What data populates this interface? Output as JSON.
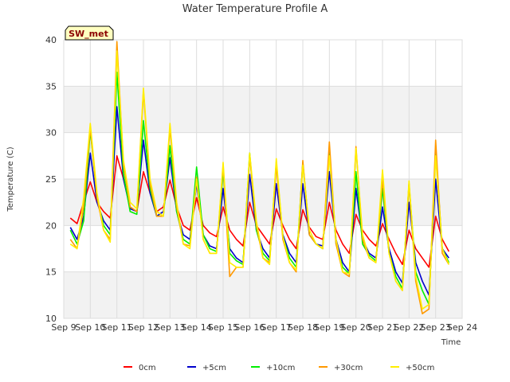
{
  "chart_data": {
    "type": "line",
    "title": "Water Temperature Profile A",
    "xlabel": "Time",
    "ylabel": "Temperature (C)",
    "station_label": "SW_met",
    "x_ticks": [
      "Sep 9",
      "Sep 10",
      "Sep 11",
      "Sep 12",
      "Sep 13",
      "Sep 14",
      "Sep 15",
      "Sep 16",
      "Sep 17",
      "Sep 18",
      "Sep 19",
      "Sep 20",
      "Sep 21",
      "Sep 22",
      "Sep 23",
      "Sep 24"
    ],
    "y_ticks": [
      10,
      15,
      20,
      25,
      30,
      35,
      40
    ],
    "ylim": [
      10,
      40
    ],
    "grid": true,
    "legend_position": "bottom",
    "series": [
      {
        "name": "0cm",
        "color": "#ff0000",
        "x": [
          "Sep 9 06:00",
          "Sep 9 12:00",
          "Sep 9 18:00",
          "Sep 10 00:00",
          "Sep 10 06:00",
          "Sep 10 12:00",
          "Sep 10 18:00",
          "Sep 11 00:00",
          "Sep 11 06:00",
          "Sep 11 12:00",
          "Sep 11 18:00",
          "Sep 12 00:00",
          "Sep 12 06:00",
          "Sep 12 12:00",
          "Sep 12 18:00",
          "Sep 13 00:00",
          "Sep 13 06:00",
          "Sep 13 12:00",
          "Sep 13 18:00",
          "Sep 14 00:00",
          "Sep 14 06:00",
          "Sep 14 12:00",
          "Sep 14 18:00",
          "Sep 15 00:00",
          "Sep 15 06:00",
          "Sep 15 12:00",
          "Sep 15 18:00",
          "Sep 16 00:00",
          "Sep 16 06:00",
          "Sep 16 12:00",
          "Sep 16 18:00",
          "Sep 17 00:00",
          "Sep 17 06:00",
          "Sep 17 12:00",
          "Sep 17 18:00",
          "Sep 18 00:00",
          "Sep 18 06:00",
          "Sep 18 12:00",
          "Sep 18 18:00",
          "Sep 19 00:00",
          "Sep 19 06:00",
          "Sep 19 12:00",
          "Sep 19 18:00",
          "Sep 20 00:00",
          "Sep 20 06:00",
          "Sep 20 12:00",
          "Sep 20 18:00",
          "Sep 21 00:00",
          "Sep 21 06:00",
          "Sep 21 12:00",
          "Sep 21 18:00",
          "Sep 22 00:00",
          "Sep 22 06:00",
          "Sep 22 12:00",
          "Sep 22 18:00",
          "Sep 23 00:00",
          "Sep 23 06:00",
          "Sep 23 12:00"
        ],
        "y": [
          20.8,
          20.2,
          22.5,
          24.7,
          22.5,
          21.5,
          20.8,
          27.5,
          25.0,
          22.0,
          21.5,
          25.8,
          23.5,
          21.5,
          22.0,
          24.9,
          22.0,
          20.0,
          19.5,
          23.0,
          20.0,
          19.2,
          18.8,
          22.0,
          19.5,
          18.5,
          17.8,
          22.5,
          20.0,
          19.0,
          18.0,
          21.8,
          20.0,
          18.5,
          17.5,
          21.7,
          19.8,
          18.8,
          18.5,
          22.5,
          19.5,
          18.0,
          17.0,
          21.2,
          19.5,
          18.5,
          17.8,
          20.2,
          18.5,
          17.0,
          15.8,
          19.5,
          17.5,
          16.5,
          15.5,
          21.0,
          18.5,
          17.2
        ]
      },
      {
        "name": "+5cm",
        "color": "#0000cc",
        "x": [
          "Sep 9 06:00",
          "Sep 9 12:00",
          "Sep 9 18:00",
          "Sep 10 00:00",
          "Sep 10 06:00",
          "Sep 10 12:00",
          "Sep 10 18:00",
          "Sep 11 00:00",
          "Sep 11 06:00",
          "Sep 11 12:00",
          "Sep 11 18:00",
          "Sep 12 00:00",
          "Sep 12 06:00",
          "Sep 12 12:00",
          "Sep 12 18:00",
          "Sep 13 00:00",
          "Sep 13 06:00",
          "Sep 13 12:00",
          "Sep 13 18:00",
          "Sep 14 00:00",
          "Sep 14 06:00",
          "Sep 14 12:00",
          "Sep 14 18:00",
          "Sep 15 00:00",
          "Sep 15 06:00",
          "Sep 15 12:00",
          "Sep 15 18:00",
          "Sep 16 00:00",
          "Sep 16 06:00",
          "Sep 16 12:00",
          "Sep 16 18:00",
          "Sep 17 00:00",
          "Sep 17 06:00",
          "Sep 17 12:00",
          "Sep 17 18:00",
          "Sep 18 00:00",
          "Sep 18 06:00",
          "Sep 18 12:00",
          "Sep 18 18:00",
          "Sep 19 00:00",
          "Sep 19 06:00",
          "Sep 19 12:00",
          "Sep 19 18:00",
          "Sep 20 00:00",
          "Sep 20 06:00",
          "Sep 20 12:00",
          "Sep 20 18:00",
          "Sep 21 00:00",
          "Sep 21 06:00",
          "Sep 21 12:00",
          "Sep 21 18:00",
          "Sep 22 00:00",
          "Sep 22 06:00",
          "Sep 22 12:00",
          "Sep 22 18:00",
          "Sep 23 00:00",
          "Sep 23 06:00",
          "Sep 23 12:00"
        ],
        "y": [
          19.8,
          18.5,
          21.0,
          27.8,
          22.5,
          20.5,
          19.5,
          32.8,
          25.0,
          21.8,
          21.5,
          29.2,
          23.5,
          21.0,
          21.5,
          27.3,
          21.5,
          19.0,
          18.5,
          24.5,
          19.0,
          17.8,
          17.5,
          24.0,
          17.5,
          16.5,
          16.0,
          25.5,
          19.5,
          17.5,
          16.5,
          24.5,
          19.0,
          17.0,
          16.0,
          24.5,
          19.0,
          18.0,
          17.8,
          25.8,
          18.5,
          16.0,
          15.0,
          24.0,
          18.5,
          17.0,
          16.5,
          22.0,
          17.5,
          15.0,
          13.8,
          22.5,
          16.0,
          14.0,
          12.5,
          25.0,
          17.5,
          16.5
        ]
      },
      {
        "name": "+10cm",
        "color": "#00ee00",
        "x": [
          "Sep 9 06:00",
          "Sep 9 12:00",
          "Sep 9 18:00",
          "Sep 10 00:00",
          "Sep 10 06:00",
          "Sep 10 12:00",
          "Sep 10 18:00",
          "Sep 11 00:00",
          "Sep 11 06:00",
          "Sep 11 12:00",
          "Sep 11 18:00",
          "Sep 12 00:00",
          "Sep 12 06:00",
          "Sep 12 12:00",
          "Sep 12 18:00",
          "Sep 13 00:00",
          "Sep 13 06:00",
          "Sep 13 12:00",
          "Sep 13 18:00",
          "Sep 14 00:00",
          "Sep 14 06:00",
          "Sep 14 12:00",
          "Sep 14 18:00",
          "Sep 15 00:00",
          "Sep 15 06:00",
          "Sep 15 12:00",
          "Sep 15 18:00",
          "Sep 16 00:00",
          "Sep 16 06:00",
          "Sep 16 12:00",
          "Sep 16 18:00",
          "Sep 17 00:00",
          "Sep 17 06:00",
          "Sep 17 12:00",
          "Sep 17 18:00",
          "Sep 18 00:00",
          "Sep 18 06:00",
          "Sep 18 12:00",
          "Sep 18 18:00",
          "Sep 19 00:00",
          "Sep 19 06:00",
          "Sep 19 12:00",
          "Sep 19 18:00",
          "Sep 20 00:00",
          "Sep 20 06:00",
          "Sep 20 12:00",
          "Sep 20 18:00",
          "Sep 21 00:00",
          "Sep 21 06:00",
          "Sep 21 12:00",
          "Sep 21 18:00",
          "Sep 22 00:00",
          "Sep 22 06:00",
          "Sep 22 12:00",
          "Sep 22 18:00",
          "Sep 23 00:00",
          "Sep 23 06:00",
          "Sep 23 12:00"
        ],
        "y": [
          19.5,
          18.0,
          20.5,
          30.3,
          23.0,
          20.0,
          19.0,
          36.5,
          25.5,
          21.5,
          21.2,
          31.3,
          24.0,
          21.0,
          21.0,
          28.6,
          21.5,
          18.5,
          18.0,
          26.3,
          19.0,
          17.5,
          17.2,
          25.8,
          17.0,
          16.2,
          15.8,
          27.8,
          19.5,
          17.0,
          16.2,
          26.8,
          18.8,
          16.5,
          15.5,
          26.8,
          19.0,
          18.0,
          17.5,
          28.0,
          18.0,
          15.5,
          14.8,
          25.8,
          18.0,
          16.8,
          16.2,
          24.0,
          17.0,
          14.5,
          13.2,
          24.5,
          15.0,
          13.0,
          11.5,
          28.0,
          17.5,
          16.0
        ]
      },
      {
        "name": "+30cm",
        "color": "#ff9900",
        "x": [
          "Sep 9 06:00",
          "Sep 9 12:00",
          "Sep 9 18:00",
          "Sep 10 00:00",
          "Sep 10 06:00",
          "Sep 10 12:00",
          "Sep 10 18:00",
          "Sep 11 00:00",
          "Sep 11 06:00",
          "Sep 11 12:00",
          "Sep 11 18:00",
          "Sep 12 00:00",
          "Sep 12 06:00",
          "Sep 12 12:00",
          "Sep 12 18:00",
          "Sep 13 00:00",
          "Sep 13 06:00",
          "Sep 13 12:00",
          "Sep 13 18:00",
          "Sep 14 00:00",
          "Sep 14 06:00",
          "Sep 14 12:00",
          "Sep 14 18:00",
          "Sep 15 00:00",
          "Sep 15 06:00",
          "Sep 15 12:00",
          "Sep 15 18:00",
          "Sep 16 00:00",
          "Sep 16 06:00",
          "Sep 16 12:00",
          "Sep 16 18:00",
          "Sep 17 00:00",
          "Sep 17 06:00",
          "Sep 17 12:00",
          "Sep 17 18:00",
          "Sep 18 00:00",
          "Sep 18 06:00",
          "Sep 18 12:00",
          "Sep 18 18:00",
          "Sep 19 00:00",
          "Sep 19 06:00",
          "Sep 19 12:00",
          "Sep 19 18:00",
          "Sep 20 00:00",
          "Sep 20 06:00",
          "Sep 20 12:00",
          "Sep 20 18:00",
          "Sep 21 00:00",
          "Sep 21 06:00",
          "Sep 21 12:00",
          "Sep 21 18:00",
          "Sep 22 00:00",
          "Sep 22 06:00",
          "Sep 22 12:00",
          "Sep 22 18:00",
          "Sep 23 00:00",
          "Sep 23 06:00",
          "Sep 23 12:00"
        ],
        "y": [
          18.5,
          17.5,
          22.0,
          30.5,
          23.0,
          19.5,
          18.5,
          39.8,
          26.5,
          22.0,
          21.5,
          34.5,
          24.5,
          21.0,
          21.0,
          30.5,
          22.0,
          18.0,
          17.8,
          25.2,
          18.5,
          17.0,
          17.0,
          26.5,
          14.5,
          15.5,
          15.5,
          27.5,
          20.0,
          16.5,
          16.0,
          26.5,
          18.5,
          16.0,
          15.0,
          27.0,
          19.0,
          18.0,
          17.5,
          29.0,
          18.0,
          15.0,
          14.5,
          28.5,
          18.5,
          16.5,
          16.0,
          25.0,
          17.0,
          14.0,
          13.0,
          24.5,
          14.0,
          10.5,
          11.0,
          29.2,
          17.0,
          15.8
        ]
      },
      {
        "name": "+50cm",
        "color": "#ffee00",
        "x": [
          "Sep 9 06:00",
          "Sep 9 12:00",
          "Sep 9 18:00",
          "Sep 10 00:00",
          "Sep 10 06:00",
          "Sep 10 12:00",
          "Sep 10 18:00",
          "Sep 11 00:00",
          "Sep 11 06:00",
          "Sep 11 12:00",
          "Sep 11 18:00",
          "Sep 12 00:00",
          "Sep 12 06:00",
          "Sep 12 12:00",
          "Sep 12 18:00",
          "Sep 13 00:00",
          "Sep 13 06:00",
          "Sep 13 12:00",
          "Sep 13 18:00",
          "Sep 14 00:00",
          "Sep 14 06:00",
          "Sep 14 12:00",
          "Sep 14 18:00",
          "Sep 15 00:00",
          "Sep 15 06:00",
          "Sep 15 12:00",
          "Sep 15 18:00",
          "Sep 16 00:00",
          "Sep 16 06:00",
          "Sep 16 12:00",
          "Sep 16 18:00",
          "Sep 17 00:00",
          "Sep 17 06:00",
          "Sep 17 12:00",
          "Sep 17 18:00",
          "Sep 18 00:00",
          "Sep 18 06:00",
          "Sep 18 12:00",
          "Sep 18 18:00",
          "Sep 19 00:00",
          "Sep 19 06:00",
          "Sep 19 12:00",
          "Sep 19 18:00",
          "Sep 20 00:00",
          "Sep 20 06:00",
          "Sep 20 12:00",
          "Sep 20 18:00",
          "Sep 21 00:00",
          "Sep 21 06:00",
          "Sep 21 12:00",
          "Sep 21 18:00",
          "Sep 22 00:00",
          "Sep 22 06:00",
          "Sep 22 12:00",
          "Sep 22 18:00",
          "Sep 23 00:00",
          "Sep 23 06:00",
          "Sep 23 12:00"
        ],
        "y": [
          18.0,
          17.5,
          23.0,
          31.0,
          23.5,
          19.5,
          18.2,
          38.8,
          27.0,
          22.5,
          21.8,
          34.8,
          25.0,
          21.5,
          21.0,
          31.0,
          22.5,
          18.0,
          17.5,
          25.0,
          18.5,
          17.0,
          17.0,
          26.8,
          16.0,
          15.5,
          15.5,
          27.8,
          20.5,
          16.5,
          15.8,
          27.2,
          18.8,
          16.0,
          15.2,
          26.5,
          19.5,
          18.0,
          17.5,
          27.5,
          18.5,
          15.0,
          14.8,
          28.3,
          19.0,
          16.5,
          16.0,
          26.0,
          17.0,
          14.0,
          13.0,
          24.8,
          14.5,
          11.0,
          11.5,
          27.5,
          17.5,
          15.8
        ]
      }
    ]
  }
}
